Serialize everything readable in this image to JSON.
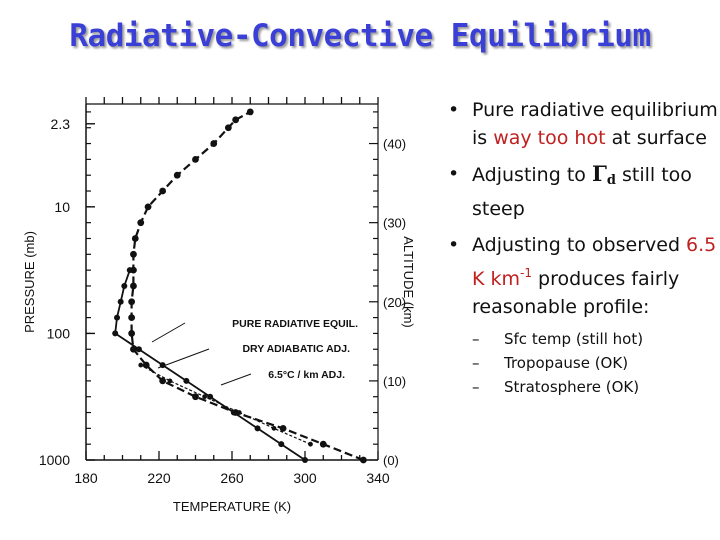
{
  "title": "Radiative-Convective Equilibrium",
  "chart_data": {
    "type": "line",
    "xlabel": "TEMPERATURE (K)",
    "ylabel": "PRESSURE (mb)",
    "y2label": "ALTITUDE (km)",
    "x_ticks": [
      "180",
      "220",
      "260",
      "300",
      "340"
    ],
    "y_ticks": [
      "2.3",
      "10",
      "100",
      "1000"
    ],
    "y2_ticks": [
      "(40)",
      "(30)",
      "(20)",
      "(10)",
      "(0)"
    ],
    "xlim": [
      180,
      340
    ],
    "ylim_altitude_km": [
      0,
      45
    ],
    "series": [
      {
        "name": "PURE RADIATIVE EQUIL.",
        "style": "dashed",
        "x": [
          332,
          310,
          288,
          262,
          240,
          222,
          213,
          206,
          205,
          205,
          205,
          206,
          206,
          206,
          207,
          210,
          214,
          222,
          230,
          240,
          250,
          258,
          262,
          270
        ],
        "y": [
          0,
          2,
          4,
          6,
          8,
          10,
          12,
          14,
          16,
          18,
          20,
          22,
          24,
          26,
          28,
          30,
          32,
          34,
          36,
          38,
          40,
          42,
          43,
          44
        ]
      },
      {
        "name": "DRY ADIABATIC ADJ.",
        "style": "dotted",
        "x": [
          303,
          283,
          264,
          245,
          226,
          210
        ],
        "y": [
          2,
          4,
          6,
          8,
          10,
          12
        ]
      },
      {
        "name": "6.5°C / km ADJ.",
        "style": "solid",
        "x": [
          300,
          287,
          274,
          261,
          248,
          235,
          222,
          209,
          196,
          197,
          199,
          201,
          204
        ],
        "y": [
          0,
          2,
          4,
          6,
          8,
          10,
          12,
          14,
          16,
          18,
          20,
          22,
          24
        ]
      }
    ]
  },
  "bullets": [
    {
      "pre": "Pure radiative equilibrium is ",
      "highlight": "way too hot",
      "post": " at surface"
    },
    {
      "pre": "Adjusting to ",
      "symbol": "Γ",
      "symbol_sub": "d",
      "post": " still too steep"
    },
    {
      "pre": "Adjusting to observed ",
      "highlight": "6.5 K km",
      "highlight_sup": "-1",
      "post": " produces fairly reasonable profile:"
    }
  ],
  "subitems": [
    "Sfc temp (still hot)",
    "Tropopause (OK)",
    "Stratosphere (OK)"
  ]
}
